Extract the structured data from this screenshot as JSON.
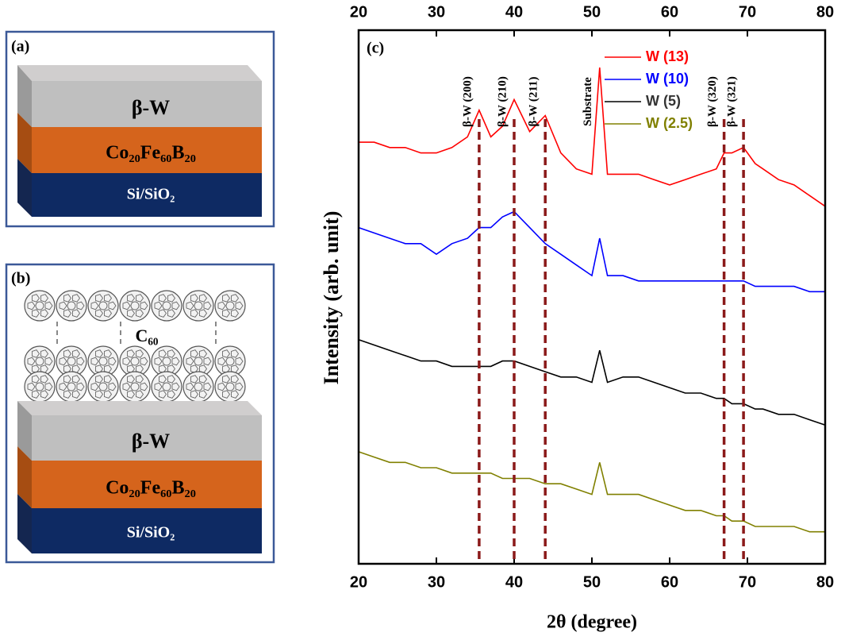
{
  "panels": {
    "a": {
      "label": "(a)",
      "layers": [
        "β-W",
        "Co₂₀Fe₆₀B₂₀",
        "Si/SiO₂"
      ]
    },
    "b": {
      "label": "(b)",
      "molecule": "C₆₀",
      "layers": [
        "β-W",
        "Co₂₀Fe₆₀B₂₀",
        "Si/SiO₂"
      ]
    }
  },
  "chart_data": {
    "type": "line",
    "panel_label": "(c)",
    "x_label": "2θ (degree)",
    "y_label": "Intensity (arb. unit)",
    "xlim": [
      20,
      80
    ],
    "xticks": [
      20,
      30,
      40,
      50,
      60,
      70,
      80
    ],
    "ylim": [
      0,
      100
    ],
    "legend": "upper center",
    "x": [
      20,
      22,
      24,
      26,
      28,
      30,
      32,
      34,
      35.5,
      37,
      38.5,
      40,
      42,
      44,
      46,
      48,
      50,
      51,
      52,
      54,
      56,
      58,
      60,
      62,
      64,
      66,
      67,
      68,
      69.5,
      71,
      72,
      74,
      76,
      78,
      80
    ],
    "series": [
      {
        "name": "W (13)",
        "color": "#ff0000",
        "values": [
          79,
          79,
          78,
          78,
          77,
          77,
          78,
          80,
          85,
          80,
          82,
          87,
          81,
          84,
          77,
          74,
          73,
          93,
          73,
          73,
          73,
          72,
          71,
          72,
          73,
          74,
          77,
          77,
          78,
          75,
          74,
          72,
          71,
          69,
          67
        ]
      },
      {
        "name": "W (10)",
        "color": "#0000ff",
        "values": [
          63,
          62,
          61,
          60,
          60,
          58,
          60,
          61,
          63,
          63,
          65,
          66,
          63,
          60,
          58,
          56,
          54,
          61,
          54,
          54,
          53,
          53,
          53,
          53,
          53,
          53,
          53,
          53,
          53,
          52,
          52,
          52,
          52,
          51,
          51
        ]
      },
      {
        "name": "W (5)",
        "color": "#000000",
        "values": [
          42,
          41,
          40,
          39,
          38,
          38,
          37,
          37,
          37,
          37,
          38,
          38,
          37,
          36,
          35,
          35,
          34,
          40,
          34,
          35,
          35,
          34,
          33,
          32,
          32,
          31,
          31,
          30,
          30,
          29,
          29,
          28,
          28,
          27,
          26
        ]
      },
      {
        "name": "W (2.5)",
        "color": "#808000",
        "values": [
          21,
          20,
          19,
          19,
          18,
          18,
          17,
          17,
          17,
          17,
          16,
          16,
          16,
          15,
          15,
          14,
          13,
          19,
          13,
          13,
          13,
          12,
          11,
          10,
          10,
          9,
          9,
          8,
          8,
          7,
          7,
          7,
          7,
          6,
          6
        ]
      }
    ],
    "annotations": [
      {
        "text": "β-W (200)",
        "x": 35.5,
        "dashed": true
      },
      {
        "text": "β-W (210)",
        "x": 40,
        "dashed": true
      },
      {
        "text": "β-W (211)",
        "x": 44,
        "dashed": true
      },
      {
        "text": "Substrate",
        "x": 51,
        "dashed": false
      },
      {
        "text": "β-W (320)",
        "x": 67,
        "dashed": true
      },
      {
        "text": "β-W (321)",
        "x": 69.5,
        "dashed": true
      }
    ],
    "annotation_color": "#8b1a1a"
  }
}
